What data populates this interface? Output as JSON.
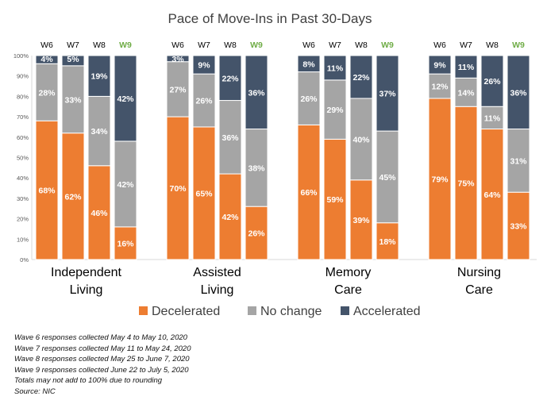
{
  "chart_data": {
    "type": "bar",
    "stacked": true,
    "normalized": true,
    "title": "Pace of Move-Ins in Past 30-Days",
    "ylim": [
      0,
      100
    ],
    "yticks": [
      "0%",
      "10%",
      "20%",
      "30%",
      "40%",
      "50%",
      "60%",
      "70%",
      "80%",
      "90%",
      "100%"
    ],
    "waves": [
      "W6",
      "W7",
      "W8",
      "W9"
    ],
    "highlight_wave": "W9",
    "groups": [
      {
        "label_lines": [
          "Independent",
          "Living"
        ],
        "bars": [
          {
            "wave": "W6",
            "values": [
              68,
              28,
              4
            ],
            "labels": [
              "68%",
              "28%",
              "4%"
            ]
          },
          {
            "wave": "W7",
            "values": [
              62,
              33,
              5
            ],
            "labels": [
              "62%",
              "33%",
              "5%"
            ]
          },
          {
            "wave": "W8",
            "values": [
              46,
              34,
              19
            ],
            "labels": [
              "46%",
              "34%",
              "19%"
            ]
          },
          {
            "wave": "W9",
            "values": [
              16,
              42,
              42
            ],
            "labels": [
              "16%",
              "42%",
              "42%"
            ]
          }
        ]
      },
      {
        "label_lines": [
          "Assisted",
          "Living"
        ],
        "bars": [
          {
            "wave": "W6",
            "values": [
              70,
              27,
              3
            ],
            "labels": [
              "70%",
              "27%",
              "3%"
            ]
          },
          {
            "wave": "W7",
            "values": [
              65,
              26,
              9
            ],
            "labels": [
              "65%",
              "26%",
              "9%"
            ]
          },
          {
            "wave": "W8",
            "values": [
              42,
              36,
              22
            ],
            "labels": [
              "42%",
              "36%",
              "22%"
            ]
          },
          {
            "wave": "W9",
            "values": [
              26,
              38,
              36
            ],
            "labels": [
              "26%",
              "38%",
              "36%"
            ]
          }
        ]
      },
      {
        "label_lines": [
          "Memory",
          "Care"
        ],
        "bars": [
          {
            "wave": "W6",
            "values": [
              66,
              26,
              8
            ],
            "labels": [
              "66%",
              "26%",
              "8%"
            ]
          },
          {
            "wave": "W7",
            "values": [
              59,
              29,
              11
            ],
            "labels": [
              "59%",
              "29%",
              "11%"
            ]
          },
          {
            "wave": "W8",
            "values": [
              39,
              40,
              22
            ],
            "labels": [
              "39%",
              "40%",
              "22%"
            ]
          },
          {
            "wave": "W9",
            "values": [
              18,
              45,
              37
            ],
            "labels": [
              "18%",
              "45%",
              "37%"
            ]
          }
        ]
      },
      {
        "label_lines": [
          "Nursing",
          "Care"
        ],
        "bars": [
          {
            "wave": "W6",
            "values": [
              79,
              12,
              9
            ],
            "labels": [
              "79%",
              "12%",
              "9%"
            ]
          },
          {
            "wave": "W7",
            "values": [
              75,
              14,
              11
            ],
            "labels": [
              "75%",
              "14%",
              "11%"
            ]
          },
          {
            "wave": "W8",
            "values": [
              64,
              11,
              26
            ],
            "labels": [
              "64%",
              "11%",
              "26%"
            ]
          },
          {
            "wave": "W9",
            "values": [
              33,
              31,
              36
            ],
            "labels": [
              "33%",
              "31%",
              "36%"
            ]
          }
        ]
      }
    ],
    "series": [
      {
        "name": "Decelerated",
        "color": "#ED7D31"
      },
      {
        "name": "No change",
        "color": "#A5A5A5"
      },
      {
        "name": "Accelerated",
        "color": "#44546A"
      }
    ],
    "wave_label_color": "#000000",
    "highlight_color": "#70AD47",
    "legend_position": "bottom",
    "grid": false,
    "notes": [
      "Wave 6 responses collected May 4 to May 10, 2020",
      "Wave 7 responses collected May 11 to May 24, 2020",
      "Wave 8 responses collected May 25 to June 7, 2020",
      "Wave 9 responses collected June 22 to July 5, 2020",
      "Totals may not add to 100% due to rounding",
      "Source: NIC"
    ]
  }
}
